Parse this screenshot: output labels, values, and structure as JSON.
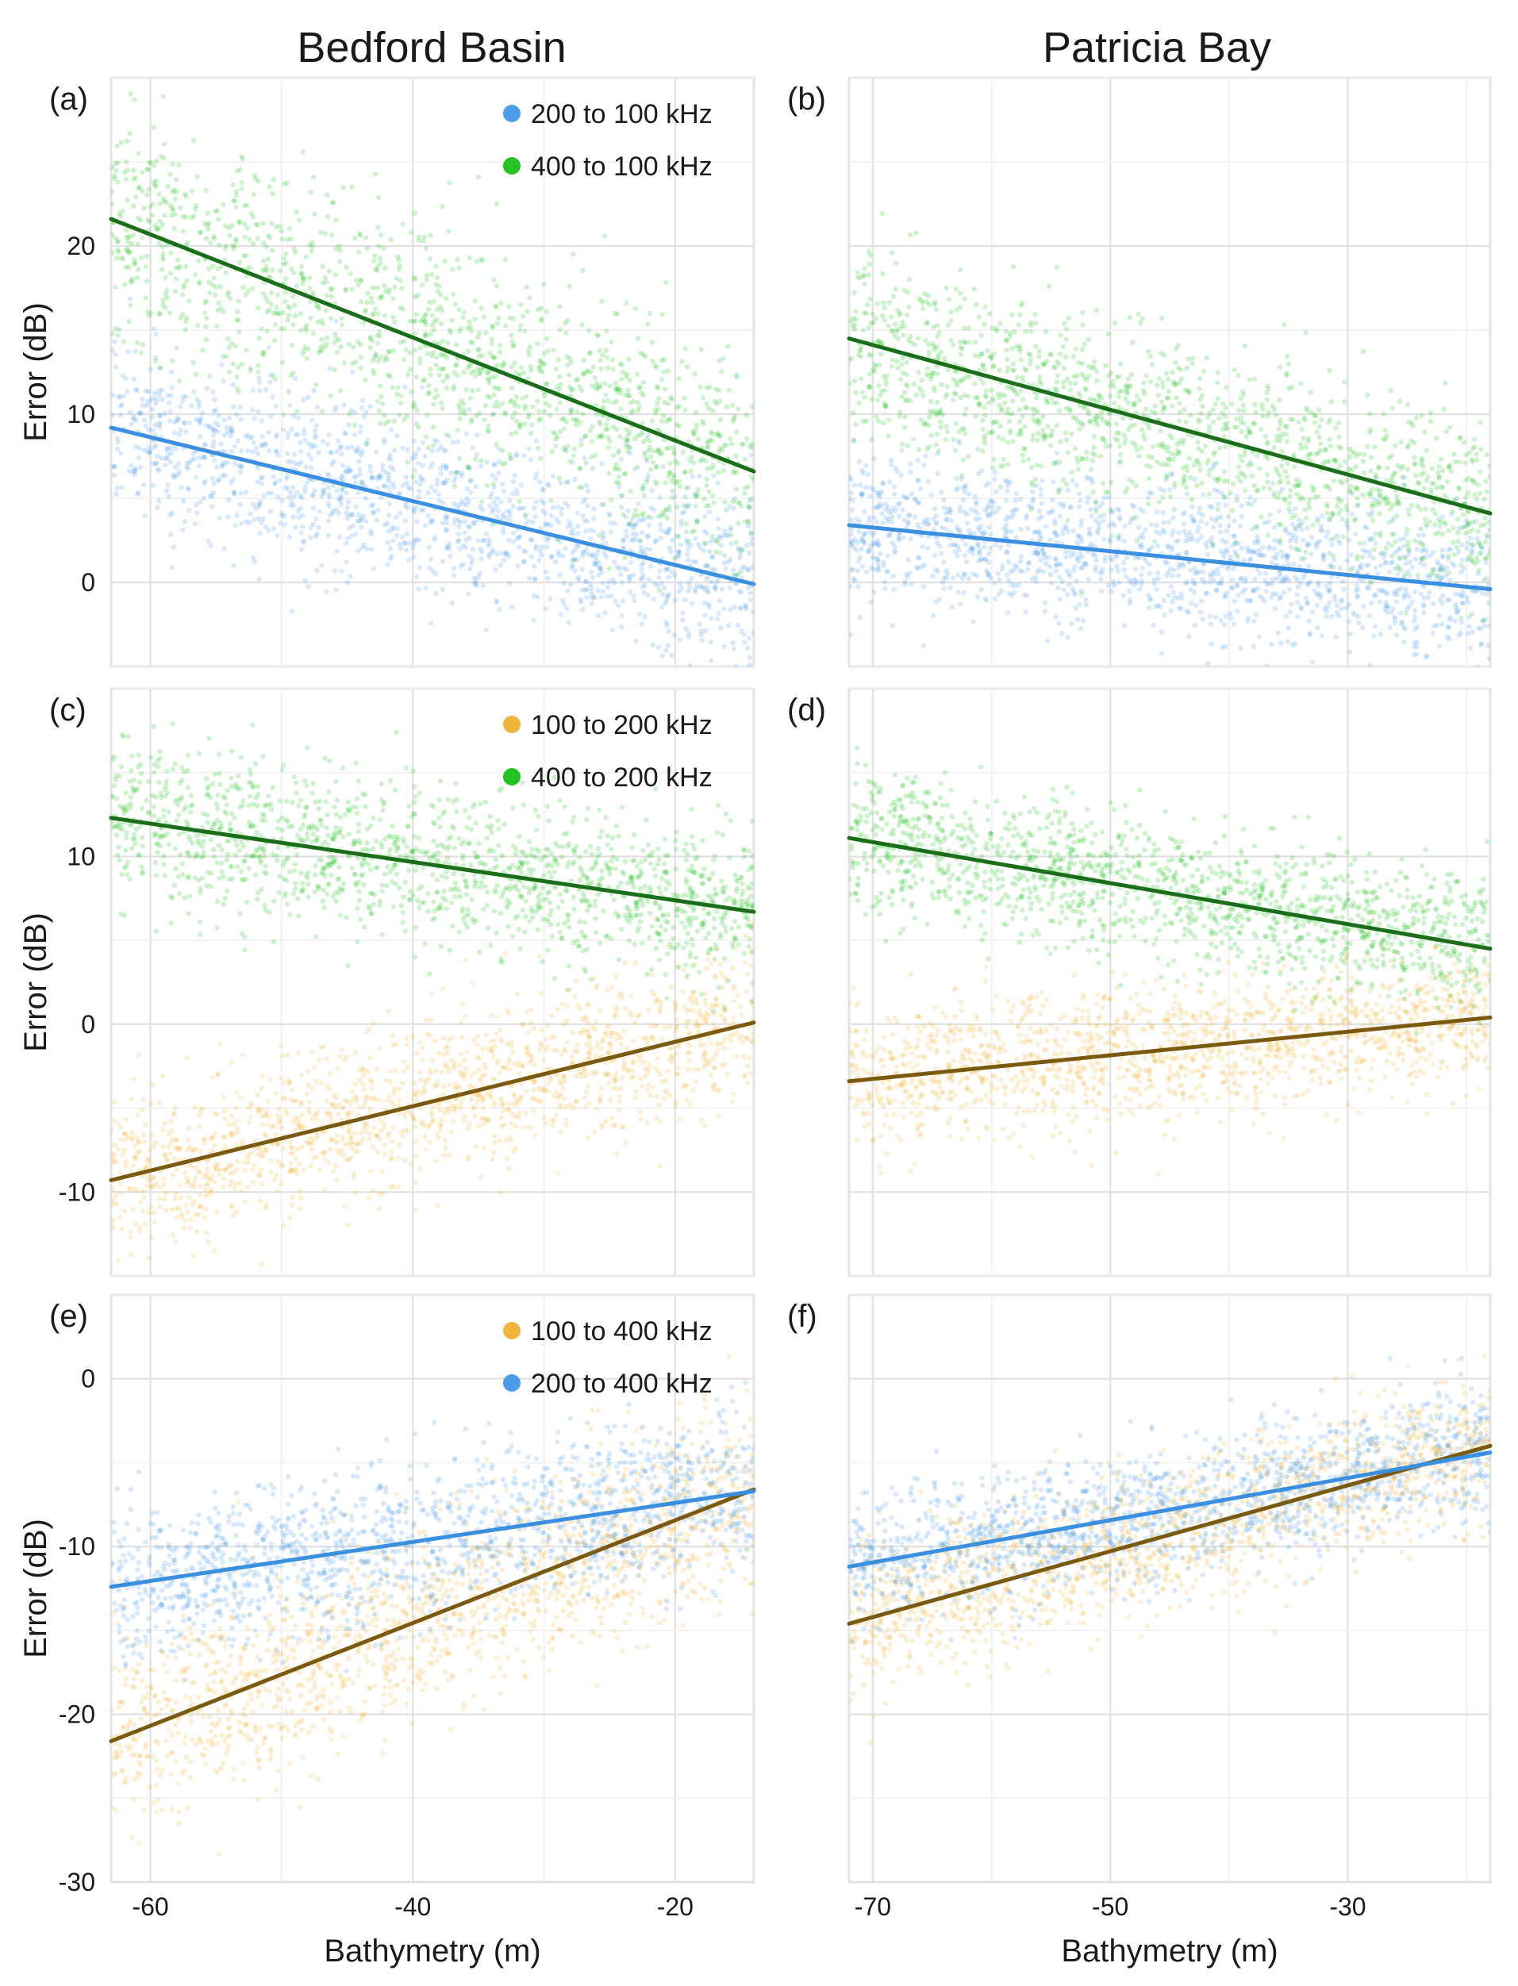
{
  "figure": {
    "column_titles": [
      "Bedford Basin",
      "Patricia Bay"
    ],
    "colors": {
      "blue": "#4a9de8",
      "green": "#22c322",
      "orange": "#f0b43c",
      "dark_green": "#1a6e1a",
      "dark_orange": "#7a5a10",
      "line_blue": "#3a8fe0"
    }
  },
  "chart_data": [
    {
      "panel": "(a)",
      "site": "Bedford Basin",
      "type": "scatter",
      "xlabel": "",
      "ylabel": "Error (dB)",
      "xlim": [
        -63,
        -14
      ],
      "ylim": [
        -5,
        30
      ],
      "xticks": [
        -60,
        -40,
        -20
      ],
      "yticks": [
        0,
        10,
        20
      ],
      "show_xticks": false,
      "show_yticks": true,
      "legend": "top-right",
      "series": [
        {
          "name": "200 to 100 kHz",
          "color": "blue",
          "line_color": "line_blue",
          "fit": [
            [
              -63,
              9.2
            ],
            [
              -14,
              -0.1
            ]
          ],
          "spread": 2.6,
          "show_legend": true
        },
        {
          "name": "400 to 100 kHz",
          "color": "green",
          "line_color": "dark_green",
          "fit": [
            [
              -63,
              21.6
            ],
            [
              -14,
              6.6
            ]
          ],
          "spread": 3.2,
          "show_legend": true
        }
      ]
    },
    {
      "panel": "(b)",
      "site": "Patricia Bay",
      "type": "scatter",
      "xlabel": "",
      "ylabel": "",
      "xlim": [
        -72,
        -18
      ],
      "ylim": [
        -5,
        30
      ],
      "xticks": [
        -70,
        -50,
        -30
      ],
      "yticks": [
        0,
        10,
        20
      ],
      "show_xticks": false,
      "show_yticks": false,
      "legend": "none",
      "series": [
        {
          "name": "200 to 100 kHz",
          "color": "blue",
          "line_color": "line_blue",
          "fit": [
            [
              -72,
              3.4
            ],
            [
              -18,
              -0.4
            ]
          ],
          "spread": 2.2,
          "show_legend": false
        },
        {
          "name": "400 to 100 kHz",
          "color": "green",
          "line_color": "dark_green",
          "fit": [
            [
              -72,
              14.5
            ],
            [
              -18,
              4.1
            ]
          ],
          "spread": 2.6,
          "show_legend": false
        }
      ]
    },
    {
      "panel": "(c)",
      "site": "Bedford Basin",
      "type": "scatter",
      "xlabel": "",
      "ylabel": "Error (dB)",
      "xlim": [
        -63,
        -14
      ],
      "ylim": [
        -15,
        20
      ],
      "xticks": [
        -60,
        -40,
        -20
      ],
      "yticks": [
        -10,
        0,
        10
      ],
      "show_xticks": false,
      "show_yticks": true,
      "legend": "top-right",
      "series": [
        {
          "name": "100 to 200 kHz",
          "color": "orange",
          "line_color": "dark_orange",
          "fit": [
            [
              -63,
              -9.3
            ],
            [
              -14,
              0.1
            ]
          ],
          "spread": 2.4,
          "show_legend": true
        },
        {
          "name": "400 to 200 kHz",
          "color": "green",
          "line_color": "dark_green",
          "fit": [
            [
              -63,
              12.3
            ],
            [
              -14,
              6.7
            ]
          ],
          "spread": 2.3,
          "show_legend": true
        }
      ]
    },
    {
      "panel": "(d)",
      "site": "Patricia Bay",
      "type": "scatter",
      "xlabel": "",
      "ylabel": "",
      "xlim": [
        -72,
        -18
      ],
      "ylim": [
        -15,
        20
      ],
      "xticks": [
        -70,
        -50,
        -30
      ],
      "yticks": [
        -10,
        0,
        10
      ],
      "show_xticks": false,
      "show_yticks": false,
      "legend": "none",
      "series": [
        {
          "name": "100 to 200 kHz",
          "color": "orange",
          "line_color": "dark_orange",
          "fit": [
            [
              -72,
              -3.4
            ],
            [
              -18,
              0.4
            ]
          ],
          "spread": 2.0,
          "show_legend": false
        },
        {
          "name": "400 to 200 kHz",
          "color": "green",
          "line_color": "dark_green",
          "fit": [
            [
              -72,
              11.1
            ],
            [
              -18,
              4.5
            ]
          ],
          "spread": 2.1,
          "show_legend": false
        }
      ]
    },
    {
      "panel": "(e)",
      "site": "Bedford Basin",
      "type": "scatter",
      "xlabel": "Bathymetry (m)",
      "ylabel": "Error (dB)",
      "xlim": [
        -63,
        -14
      ],
      "ylim": [
        -30,
        5
      ],
      "xticks": [
        -60,
        -40,
        -20
      ],
      "yticks": [
        -30,
        -20,
        -10,
        0
      ],
      "show_xticks": true,
      "show_yticks": true,
      "legend": "top-right",
      "series": [
        {
          "name": "100 to 400 kHz",
          "color": "orange",
          "line_color": "dark_orange",
          "fit": [
            [
              -63,
              -21.6
            ],
            [
              -14,
              -6.6
            ]
          ],
          "spread": 3.0,
          "show_legend": true
        },
        {
          "name": "200 to 400 kHz",
          "color": "blue",
          "line_color": "line_blue",
          "fit": [
            [
              -63,
              -12.4
            ],
            [
              -14,
              -6.7
            ]
          ],
          "spread": 2.4,
          "show_legend": true
        }
      ]
    },
    {
      "panel": "(f)",
      "site": "Patricia Bay",
      "type": "scatter",
      "xlabel": "Bathymetry (m)",
      "ylabel": "",
      "xlim": [
        -72,
        -18
      ],
      "ylim": [
        -30,
        5
      ],
      "xticks": [
        -70,
        -50,
        -30
      ],
      "yticks": [
        -30,
        -20,
        -10,
        0
      ],
      "show_xticks": true,
      "show_yticks": false,
      "legend": "none",
      "series": [
        {
          "name": "100 to 400 kHz",
          "color": "orange",
          "line_color": "dark_orange",
          "fit": [
            [
              -72,
              -14.6
            ],
            [
              -18,
              -4.0
            ]
          ],
          "spread": 2.2,
          "show_legend": false
        },
        {
          "name": "200 to 400 kHz",
          "color": "blue",
          "line_color": "line_blue",
          "fit": [
            [
              -72,
              -11.2
            ],
            [
              -18,
              -4.4
            ]
          ],
          "spread": 2.0,
          "show_legend": false
        }
      ]
    }
  ]
}
